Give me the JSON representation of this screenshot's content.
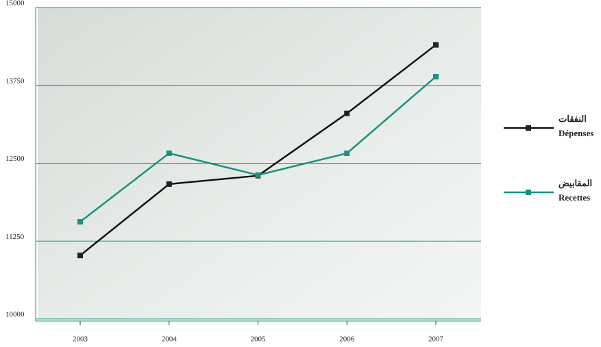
{
  "chart_data": {
    "type": "line",
    "categories": [
      "2003",
      "2004",
      "2005",
      "2006",
      "2007"
    ],
    "series": [
      {
        "name": "Dépenses",
        "name_ar": "النفقات",
        "color": "#111111",
        "values": [
          11020,
          12165,
          12300,
          13300,
          14400
        ]
      },
      {
        "name": "Recettes",
        "name_ar": "المقابيض",
        "color": "#1a9080",
        "values": [
          11560,
          12660,
          12310,
          12660,
          13890
        ]
      }
    ],
    "ylim": [
      10000,
      15000
    ],
    "yticks": [
      10000,
      11250,
      12500,
      13750,
      15000
    ],
    "grid": true
  }
}
